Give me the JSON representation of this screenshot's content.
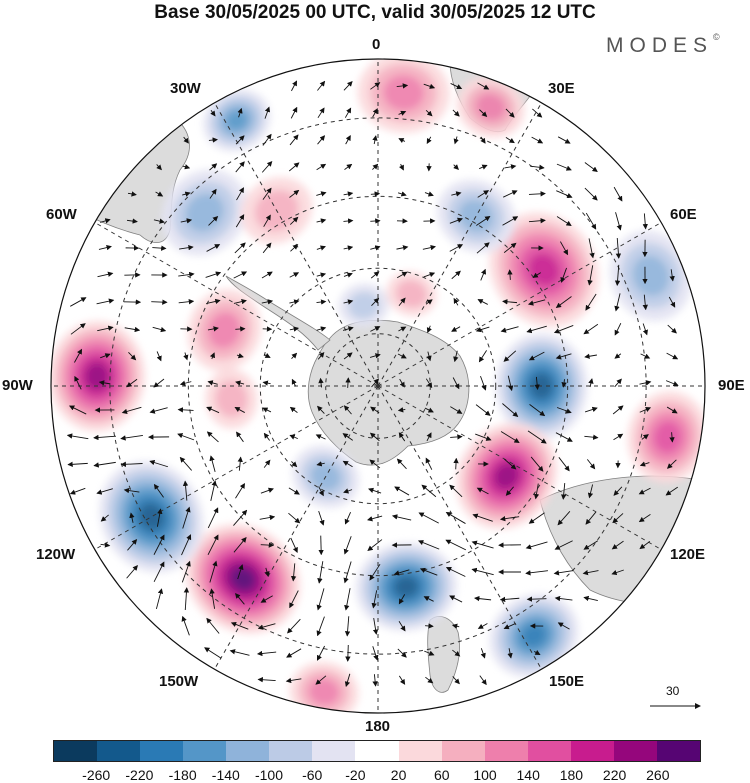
{
  "header": {
    "title": "Base 30/05/2025 00 UTC, valid 30/05/2025 12 UTC",
    "brand": "MODES",
    "brand_mark": "©"
  },
  "map": {
    "projection": "south-polar-stereographic",
    "longitude_labels": {
      "top": "0",
      "top_right": "30E",
      "upper_right": "60E",
      "right": "90E",
      "lower_right": "120E",
      "bottom_right": "150E",
      "bottom": "180",
      "bottom_left": "150W",
      "lower_left": "120W",
      "left": "90W",
      "upper_left": "60W",
      "top_left": "30W"
    },
    "reference_vector": "30",
    "colors": {
      "land": "#dcdcdc",
      "background": "#ffffff",
      "coast": "#808080",
      "grid": "#333333"
    }
  },
  "colorbar": {
    "tick_labels": [
      "-260",
      "-220",
      "-180",
      "-140",
      "-100",
      "-60",
      "-20",
      "20",
      "60",
      "100",
      "140",
      "180",
      "220",
      "260"
    ],
    "colors": [
      "#0b3a5e",
      "#13598c",
      "#2a7ab5",
      "#5496c8",
      "#8fb3da",
      "#bccbe6",
      "#e3e3f2",
      "#ffffff",
      "#fbd9dc",
      "#f5afbf",
      "#ee7fac",
      "#e14fa0",
      "#c81c8e",
      "#95067c",
      "#560573"
    ]
  },
  "anomalies": [
    {
      "lon": 90,
      "r": 0.5,
      "v": -200,
      "s": 46
    },
    {
      "lon": 125,
      "r": 0.48,
      "v": 220,
      "s": 48
    },
    {
      "lon": 148,
      "r": 0.9,
      "v": -180,
      "s": 40
    },
    {
      "lon": 100,
      "r": 0.9,
      "v": 150,
      "s": 40
    },
    {
      "lon": 55,
      "r": 0.62,
      "v": 190,
      "s": 52
    },
    {
      "lon": 30,
      "r": 0.6,
      "v": -100,
      "s": 35
    },
    {
      "lon": 68,
      "r": 0.9,
      "v": -100,
      "s": 40
    },
    {
      "lon": 172,
      "r": 0.62,
      "v": -200,
      "s": 44
    },
    {
      "lon": -145,
      "r": 0.72,
      "v": 240,
      "s": 52
    },
    {
      "lon": -120,
      "r": 0.8,
      "v": -200,
      "s": 50
    },
    {
      "lon": -88,
      "r": 0.86,
      "v": 220,
      "s": 48
    },
    {
      "lon": -150,
      "r": 0.32,
      "v": -100,
      "s": 30
    },
    {
      "lon": -70,
      "r": 0.5,
      "v": 80,
      "s": 36
    },
    {
      "lon": -45,
      "r": 0.75,
      "v": -100,
      "s": 40
    },
    {
      "lon": -28,
      "r": 0.92,
      "v": -120,
      "s": 30
    },
    {
      "lon": 5,
      "r": 0.9,
      "v": 100,
      "s": 40
    },
    {
      "lon": 22,
      "r": 0.92,
      "v": 80,
      "s": 30
    },
    {
      "lon": -30,
      "r": 0.62,
      "v": 60,
      "s": 32
    },
    {
      "lon": -95,
      "r": 0.45,
      "v": 60,
      "s": 26
    },
    {
      "lon": -10,
      "r": 0.25,
      "v": -60,
      "s": 22
    },
    {
      "lon": 20,
      "r": 0.3,
      "v": 60,
      "s": 22
    },
    {
      "lon": -170,
      "r": 0.95,
      "v": 80,
      "s": 30
    }
  ]
}
